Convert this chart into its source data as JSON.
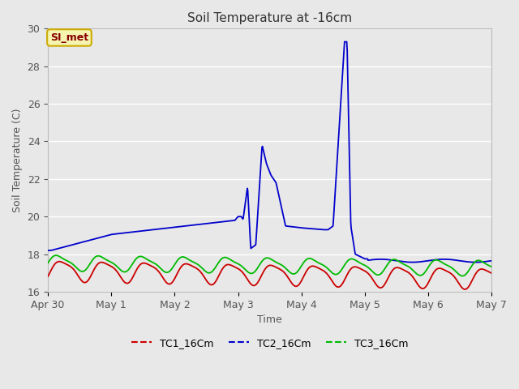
{
  "title": "Soil Temperature at -16cm",
  "xlabel": "Time",
  "ylabel": "Soil Temperature (C)",
  "ylim": [
    16,
    30
  ],
  "yticks": [
    16,
    18,
    20,
    22,
    24,
    26,
    28,
    30
  ],
  "background_color": "#e8e8e8",
  "plot_bg_color": "#e8e8e8",
  "grid_color": "#ffffff",
  "annotation_text": "SI_met",
  "annotation_bg": "#f5f5b0",
  "annotation_border": "#ccaa00",
  "annotation_text_color": "#880000",
  "tc1_color": "#cc0000",
  "tc2_color": "#0000cc",
  "tc3_color": "#00bb00",
  "tick_labels": [
    "Apr 30",
    "May 1",
    "May 2",
    "May 3",
    "May 4",
    "May 5",
    "May 6",
    "May 7"
  ],
  "tick_positions": [
    0,
    1,
    2,
    3,
    4,
    5,
    6,
    7
  ]
}
